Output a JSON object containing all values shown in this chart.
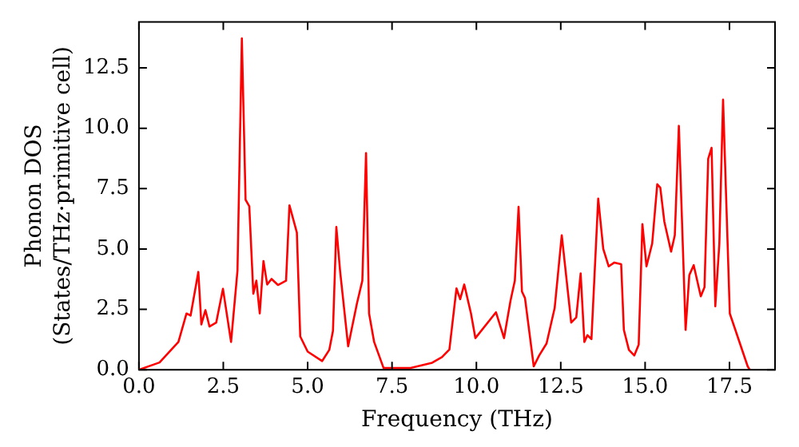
{
  "chart_data": {
    "type": "line",
    "xlabel": "Frequency (THz)",
    "ylabel": "Phonon DOS\n(States/THz·primitive cell)",
    "xlim": [
      0,
      18.85
    ],
    "ylim": [
      0,
      14.4
    ],
    "xticks": [
      {
        "value": 0,
        "label": "0.0"
      },
      {
        "value": 2.5,
        "label": "2.5"
      },
      {
        "value": 5,
        "label": "5.0"
      },
      {
        "value": 7.5,
        "label": "7.5"
      },
      {
        "value": 10,
        "label": "10.0"
      },
      {
        "value": 12.5,
        "label": "12.5"
      },
      {
        "value": 15,
        "label": "15.0"
      },
      {
        "value": 17.5,
        "label": "17.5"
      }
    ],
    "yticks": [
      {
        "value": 0,
        "label": "0.0"
      },
      {
        "value": 2.5,
        "label": "2.5"
      },
      {
        "value": 5,
        "label": "5.0"
      },
      {
        "value": 7.5,
        "label": "7.5"
      },
      {
        "value": 10,
        "label": "10.0"
      },
      {
        "value": 12.5,
        "label": "12.5"
      }
    ],
    "grid": false,
    "legend": false,
    "marker": "none",
    "line_style": "solid",
    "series": [
      {
        "color": "#ff0000",
        "x": [
          0,
          0.61,
          1.17,
          1.41,
          1.53,
          1.76,
          1.85,
          1.97,
          2.09,
          2.29,
          2.49,
          2.73,
          2.92,
          3.05,
          3.16,
          3.27,
          3.39,
          3.48,
          3.58,
          3.69,
          3.8,
          3.93,
          4.12,
          4.36,
          4.46,
          4.68,
          4.78,
          5.0,
          5.43,
          5.64,
          5.75,
          5.85,
          5.96,
          6.2,
          6.46,
          6.62,
          6.73,
          6.82,
          6.97,
          7.25,
          8.05,
          8.69,
          8.98,
          9.2,
          9.41,
          9.52,
          9.64,
          9.84,
          9.97,
          10.58,
          10.82,
          11.01,
          11.14,
          11.25,
          11.35,
          11.44,
          11.7,
          11.86,
          12.08,
          12.32,
          12.53,
          12.81,
          12.96,
          13.09,
          13.2,
          13.29,
          13.41,
          13.61,
          13.76,
          13.92,
          14.09,
          14.29,
          14.37,
          14.52,
          14.68,
          14.81,
          14.92,
          15.04,
          15.21,
          15.36,
          15.45,
          15.57,
          15.77,
          15.88,
          16.0,
          16.2,
          16.31,
          16.44,
          16.65,
          16.76,
          16.87,
          16.97,
          17.08,
          17.2,
          17.31,
          17.51,
          18.04,
          18.1
        ],
        "values": [
          0,
          0.3,
          1.15,
          2.33,
          2.24,
          4.05,
          1.88,
          2.47,
          1.79,
          1.95,
          3.35,
          1.15,
          4.1,
          13.72,
          7.04,
          6.77,
          3.15,
          3.69,
          2.33,
          4.5,
          3.53,
          3.76,
          3.51,
          3.69,
          6.81,
          5.68,
          1.38,
          0.75,
          0.36,
          0.82,
          1.61,
          5.91,
          4.1,
          0.97,
          2.74,
          3.69,
          8.97,
          2.33,
          1.15,
          0.07,
          0.07,
          0.29,
          0.52,
          0.84,
          3.37,
          2.92,
          3.53,
          2.33,
          1.31,
          2.38,
          1.31,
          2.85,
          3.69,
          6.75,
          3.24,
          2.97,
          0.14,
          0.59,
          1.09,
          2.56,
          5.57,
          1.95,
          2.17,
          3.99,
          1.15,
          1.43,
          1.27,
          7.09,
          5.0,
          4.28,
          4.44,
          4.37,
          1.65,
          0.82,
          0.59,
          1.04,
          6.03,
          4.28,
          5.23,
          7.68,
          7.54,
          6.13,
          4.89,
          5.57,
          10.1,
          1.65,
          3.92,
          4.33,
          3.04,
          3.42,
          8.74,
          9.19,
          2.63,
          5.23,
          11.19,
          2.33,
          0.14,
          0
        ]
      }
    ]
  }
}
